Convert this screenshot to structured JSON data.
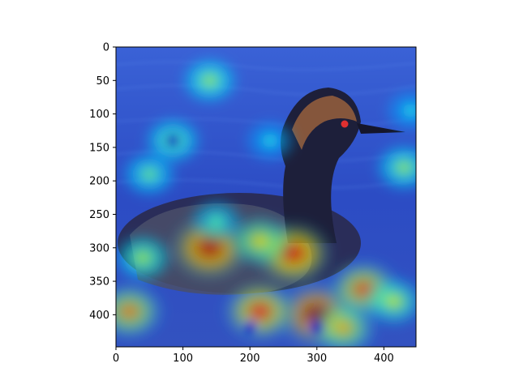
{
  "chart_data": {
    "type": "heatmap",
    "title": "",
    "xlabel": "",
    "ylabel": "",
    "image_size": [
      448,
      448
    ],
    "xlim": [
      0,
      448
    ],
    "ylim": [
      448,
      0
    ],
    "x_ticks": [
      0,
      100,
      200,
      300,
      400
    ],
    "y_ticks": [
      0,
      50,
      100,
      150,
      200,
      250,
      300,
      350,
      400
    ],
    "colormap": "jet",
    "overlay_alpha": 0.5,
    "content": "photograph of a grebe on blue water with a saliency heatmap overlay",
    "hotspots": [
      {
        "x": 140,
        "y": 300,
        "intensity": 0.95
      },
      {
        "x": 265,
        "y": 308,
        "intensity": 0.9
      },
      {
        "x": 300,
        "y": 400,
        "intensity": 1.0
      },
      {
        "x": 215,
        "y": 395,
        "intensity": 0.85
      },
      {
        "x": 370,
        "y": 362,
        "intensity": 0.8
      },
      {
        "x": 415,
        "y": 380,
        "intensity": 0.6
      },
      {
        "x": 20,
        "y": 395,
        "intensity": 0.75
      },
      {
        "x": 40,
        "y": 315,
        "intensity": 0.55
      },
      {
        "x": 215,
        "y": 290,
        "intensity": 0.65
      },
      {
        "x": 150,
        "y": 260,
        "intensity": 0.45
      },
      {
        "x": 140,
        "y": 50,
        "intensity": 0.55
      },
      {
        "x": 85,
        "y": 140,
        "intensity": 0.55
      },
      {
        "x": 50,
        "y": 190,
        "intensity": 0.5
      },
      {
        "x": 430,
        "y": 180,
        "intensity": 0.55
      },
      {
        "x": 440,
        "y": 95,
        "intensity": 0.4
      },
      {
        "x": 230,
        "y": 140,
        "intensity": 0.4
      },
      {
        "x": 340,
        "y": 420,
        "intensity": 0.7
      }
    ],
    "cold_spots": [
      {
        "x": 85,
        "y": 140
      },
      {
        "x": 200,
        "y": 420
      },
      {
        "x": 300,
        "y": 420
      }
    ]
  }
}
